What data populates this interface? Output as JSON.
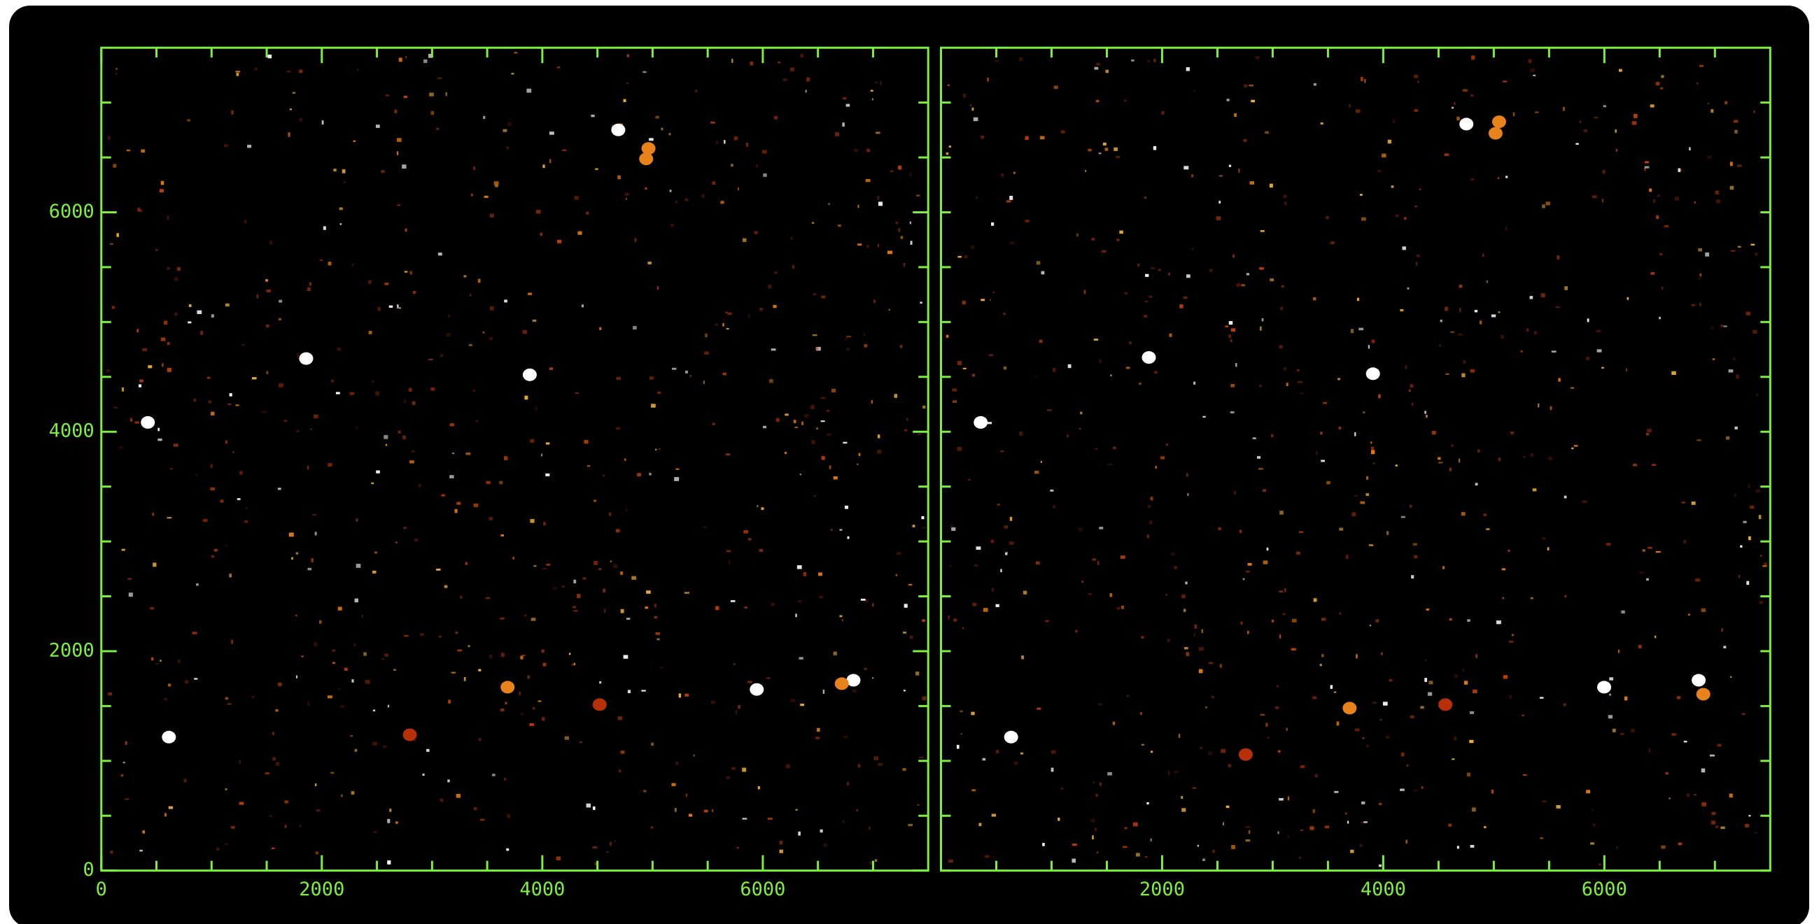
{
  "chart_data": [
    {
      "type": "scatter",
      "xlim": [
        0,
        7500
      ],
      "ylim": [
        0,
        7500
      ],
      "xticks": [
        0,
        2000,
        4000,
        6000
      ],
      "yticks": [
        0,
        2000,
        4000,
        6000
      ],
      "xminorticks": [
        500,
        1000,
        1500,
        2500,
        3000,
        3500,
        4500,
        5000,
        5500,
        6500,
        7000
      ],
      "yminorticks": [
        500,
        1000,
        1500,
        2500,
        3000,
        3500,
        4500,
        5000,
        5500,
        6500,
        7000
      ],
      "axis_color": "#7cf03c",
      "series": [
        {
          "color": "#ffffff",
          "x": [
            422,
            1858,
            3886,
            613,
            6822,
            5945,
            4689
          ],
          "y": [
            4085,
            4667,
            4519,
            1217,
            1735,
            1651,
            6751
          ]
        },
        {
          "color": "#e8821a",
          "x": [
            4963,
            4942,
            3685,
            6716
          ],
          "y": [
            6582,
            6487,
            1672,
            1704
          ]
        },
        {
          "color": "#b83008",
          "x": [
            4520,
            2798
          ],
          "y": [
            1513,
            1238
          ]
        }
      ]
    },
    {
      "type": "scatter",
      "xlim": [
        0,
        7500
      ],
      "ylim": [
        0,
        7500
      ],
      "xticks": [
        2000,
        4000,
        6000
      ],
      "xminorticks": [
        0,
        500,
        1000,
        1500,
        2500,
        3000,
        3500,
        4500,
        5000,
        5500,
        6500,
        7000
      ],
      "yminorticks": [
        0,
        500,
        1000,
        1500,
        2000,
        2500,
        3000,
        3500,
        4000,
        4500,
        5000,
        5500,
        6000,
        6500,
        7000
      ],
      "axis_color": "#7cf03c",
      "series": [
        {
          "color": "#ffffff",
          "x": [
            359,
            1880,
            3907,
            634,
            6853,
            5998,
            4752
          ],
          "y": [
            4085,
            4677,
            4529,
            1217,
            1735,
            1672,
            6804
          ]
        },
        {
          "color": "#e8821a",
          "x": [
            5048,
            5016,
            3696,
            6895
          ],
          "y": [
            6825,
            6720,
            1481,
            1608
          ]
        },
        {
          "color": "#b83008",
          "x": [
            4562,
            2756
          ],
          "y": [
            1513,
            1058
          ]
        }
      ]
    }
  ]
}
